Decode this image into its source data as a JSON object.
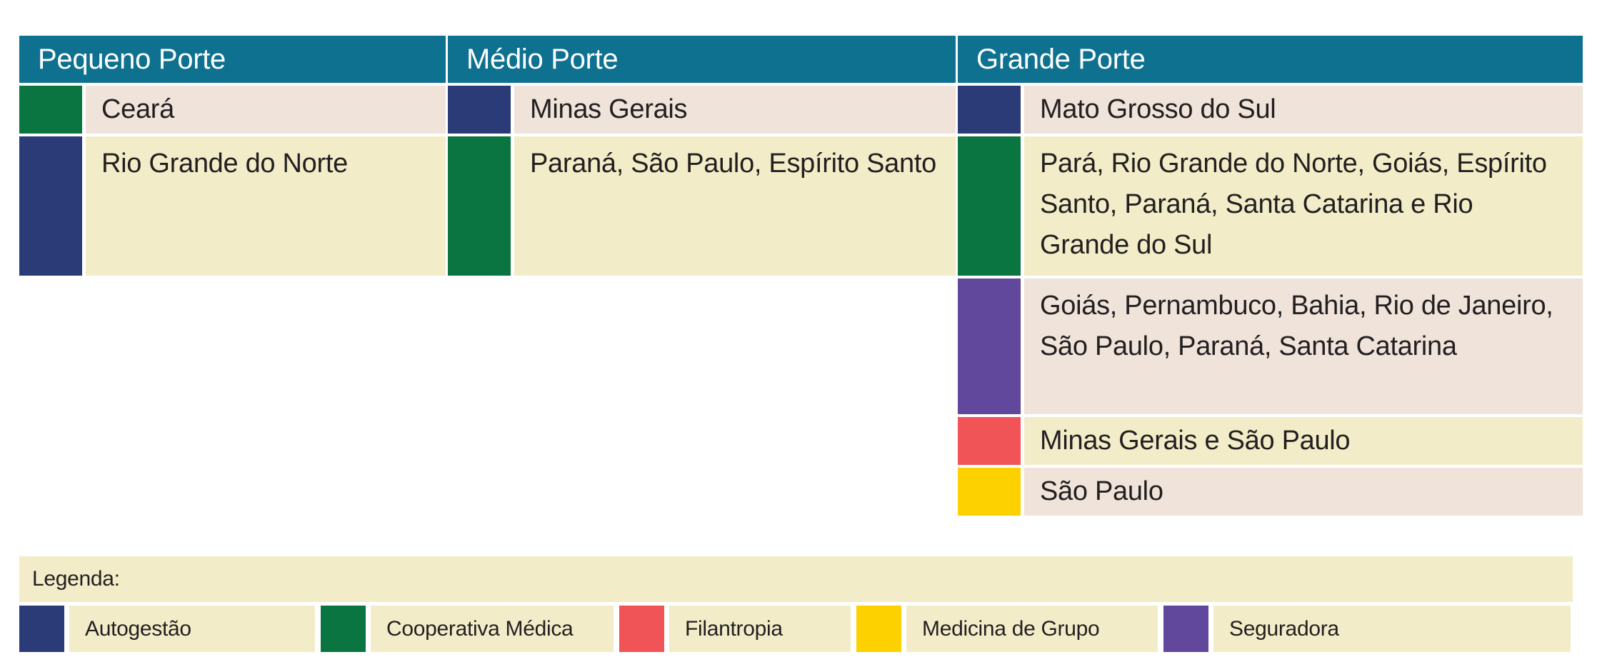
{
  "palette": {
    "header_bg": "#0E7190",
    "header_text": "#FFFFFF",
    "row_bg_beige": "#EFE3DA",
    "row_bg_yellow": "#F2EDC8",
    "text": "#231F20",
    "autogestao": "#2A3B78",
    "cooperativa_medica": "#0A7540",
    "filantropia": "#F05456",
    "medicina_de_grupo": "#FDD000",
    "seguradora": "#61489D"
  },
  "table": {
    "columns": [
      {
        "header": "Pequeno Porte",
        "rows": [
          {
            "category": "Cooperativa Médica",
            "color": "#0A7540",
            "bg": "#EFE3DA",
            "label": "Ceará"
          },
          {
            "category": "Autogestão",
            "color": "#2A3B78",
            "bg": "#F2EDC8",
            "label": "Rio Grande do Norte"
          }
        ]
      },
      {
        "header": "Médio Porte",
        "rows": [
          {
            "category": "Autogestão",
            "color": "#2A3B78",
            "bg": "#EFE3DA",
            "label": "Minas Gerais"
          },
          {
            "category": "Cooperativa Médica",
            "color": "#0A7540",
            "bg": "#F2EDC8",
            "label": "Paraná, São Paulo, Espírito Santo"
          }
        ]
      },
      {
        "header": "Grande Porte",
        "rows": [
          {
            "category": "Autogestão",
            "color": "#2A3B78",
            "bg": "#EFE3DA",
            "label": "Mato Grosso do Sul"
          },
          {
            "category": "Cooperativa Médica",
            "color": "#0A7540",
            "bg": "#F2EDC8",
            "label": "Pará, Rio Grande do Norte, Goiás, Espírito Santo, Paraná, Santa Catarina e Rio Grande do Sul"
          },
          {
            "category": "Seguradora",
            "color": "#61489D",
            "bg": "#EFE3DA",
            "label": "Goiás, Pernambuco, Bahia, Rio de Janeiro, São Paulo, Paraná, Santa Catarina"
          },
          {
            "category": "Filantropia",
            "color": "#F05456",
            "bg": "#F2EDC8",
            "label": "Minas Gerais e São Paulo"
          },
          {
            "category": "Medicina de Grupo",
            "color": "#FDD000",
            "bg": "#EFE3DA",
            "label": "São Paulo"
          }
        ]
      }
    ]
  },
  "legend": {
    "title": "Legenda:",
    "items": [
      {
        "label": "Autogestão",
        "color": "#2A3B78"
      },
      {
        "label": "Cooperativa Médica",
        "color": "#0A7540"
      },
      {
        "label": "Filantropia",
        "color": "#F05456"
      },
      {
        "label": "Medicina de Grupo",
        "color": "#FDD000"
      },
      {
        "label": "Seguradora",
        "color": "#61489D"
      }
    ]
  }
}
